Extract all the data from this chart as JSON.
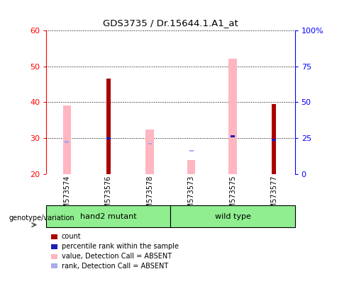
{
  "title": "GDS3735 / Dr.15644.1.A1_at",
  "samples": [
    "GSM573574",
    "GSM573576",
    "GSM573578",
    "GSM573573",
    "GSM573575",
    "GSM573577"
  ],
  "ylim_left": [
    20,
    60
  ],
  "ylim_right": [
    0,
    100
  ],
  "yticks_left": [
    20,
    30,
    40,
    50,
    60
  ],
  "yticks_right": [
    0,
    25,
    50,
    75,
    100
  ],
  "ytick_labels_right": [
    "0",
    "25",
    "50",
    "75",
    "100%"
  ],
  "red_bars": [
    null,
    46.5,
    null,
    null,
    null,
    39.5
  ],
  "pink_bars": [
    39.0,
    null,
    32.5,
    24.0,
    52.0,
    null
  ],
  "blue_squares": [
    null,
    30.0,
    null,
    null,
    30.5,
    29.5
  ],
  "light_blue_squares": [
    29.0,
    null,
    28.5,
    26.5,
    null,
    null
  ],
  "bar_bottom": 20,
  "red_color": "#AA0000",
  "pink_color": "#FFB6C1",
  "blue_color": "#1C1CB4",
  "light_blue_color": "#AAAAEE",
  "bg_xaxis": "#D3D3D3",
  "group_color": "#90EE90",
  "legend_items": [
    {
      "label": "count",
      "color": "#AA0000"
    },
    {
      "label": "percentile rank within the sample",
      "color": "#1C1CB4"
    },
    {
      "label": "value, Detection Call = ABSENT",
      "color": "#FFB6C1"
    },
    {
      "label": "rank, Detection Call = ABSENT",
      "color": "#AAAAEE"
    }
  ]
}
